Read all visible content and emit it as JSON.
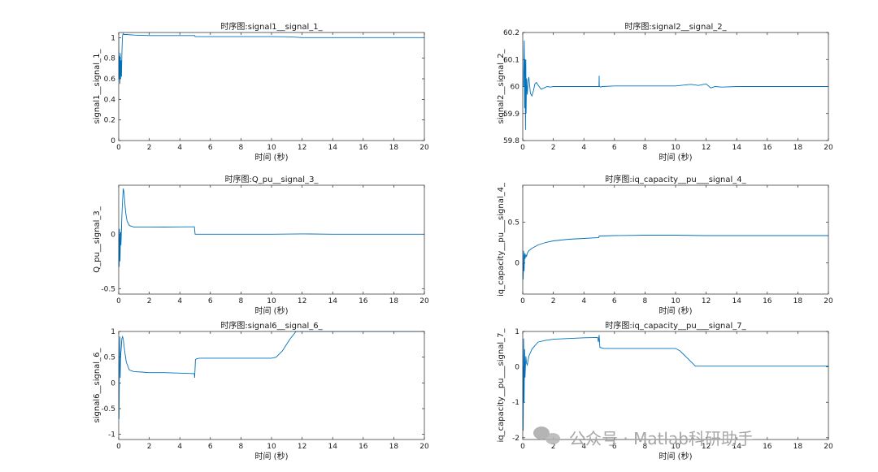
{
  "colors": {
    "series": "#0072BD",
    "axis": "#262626",
    "watermark": "#a6a6a6"
  },
  "watermark": {
    "icon": "wechat-icon",
    "text": "公众号 · Matlab科研助手"
  },
  "chart_data": [
    {
      "type": "line",
      "title": "时序图:signal1__signal_1_",
      "xlabel": "时间 (秒)",
      "ylabel": "signal1__signal_1_",
      "xlim": [
        0,
        20
      ],
      "ylim": [
        0,
        1.05
      ],
      "xticks": [
        0,
        2,
        4,
        6,
        8,
        10,
        12,
        14,
        16,
        18,
        20
      ],
      "xtick_labels": [
        "0",
        "2",
        "4",
        "6",
        "8",
        "10",
        "12",
        "14",
        "16",
        "18",
        "20"
      ],
      "yticks": [
        0,
        0.2,
        0.4,
        0.6,
        0.8,
        1
      ],
      "ytick_labels": [
        "0",
        "0.2",
        "0.4",
        "0.6",
        "0.8",
        "1"
      ],
      "series": [
        {
          "x": [
            0,
            0.02,
            0.05,
            0.08,
            0.1,
            0.12,
            0.15,
            0.18,
            0.2,
            0.22,
            0.25,
            0.3,
            0.35,
            0.5,
            1,
            2,
            3,
            4,
            4.98,
            5,
            5.02,
            6,
            8,
            10,
            11,
            11.5,
            12,
            13,
            14,
            16,
            18,
            20
          ],
          "y": [
            1.0,
            0.6,
            0.82,
            0.55,
            0.85,
            0.6,
            0.78,
            0.62,
            0.8,
            0.9,
            1.02,
            1.04,
            1.03,
            1.03,
            1.025,
            1.02,
            1.02,
            1.02,
            1.02,
            1.01,
            1.01,
            1.01,
            1.01,
            1.01,
            1.008,
            1.005,
            1.0,
            1.0,
            1.0,
            1.0,
            1.0,
            1.0
          ]
        }
      ]
    },
    {
      "type": "line",
      "title": "时序图:signal2__signal_2_",
      "xlabel": "时间 (秒)",
      "ylabel": "signal2__signal_2_",
      "xlim": [
        0,
        20
      ],
      "ylim": [
        59.8,
        60.2
      ],
      "xticks": [
        0,
        2,
        4,
        6,
        8,
        10,
        12,
        14,
        16,
        18,
        20
      ],
      "xtick_labels": [
        "0",
        "2",
        "4",
        "6",
        "8",
        "10",
        "12",
        "14",
        "16",
        "18",
        "20"
      ],
      "yticks": [
        59.8,
        59.9,
        60,
        60.1,
        60.2
      ],
      "ytick_labels": [
        "59.8",
        "59.9",
        "60",
        "60.1",
        "60.2"
      ],
      "series": [
        {
          "x": [
            0,
            0.05,
            0.1,
            0.12,
            0.15,
            0.18,
            0.2,
            0.22,
            0.25,
            0.3,
            0.35,
            0.4,
            0.5,
            0.6,
            0.7,
            0.8,
            0.9,
            1.0,
            1.2,
            1.4,
            1.6,
            1.8,
            2,
            3,
            4,
            4.99,
            5.0,
            5.01,
            5.05,
            5.1,
            5.2,
            6,
            8,
            10,
            10.5,
            11,
            11.5,
            12,
            12.3,
            12.6,
            13,
            14,
            16,
            18,
            20
          ],
          "y": [
            60,
            60.0,
            60.17,
            59.92,
            60.1,
            59.84,
            60.1,
            59.9,
            60.03,
            59.97,
            60.02,
            60.035,
            59.975,
            59.965,
            59.985,
            60.01,
            60.015,
            60.005,
            59.99,
            59.995,
            60.0,
            59.998,
            60.0,
            60.0,
            60.0,
            60.0,
            60.04,
            60.0,
            60.0,
            59.998,
            60.0,
            60.002,
            60.002,
            60.002,
            60.005,
            60.008,
            60.004,
            60.01,
            59.995,
            60.0,
            59.998,
            60.0,
            60.0,
            60.0,
            60.0
          ]
        }
      ]
    },
    {
      "type": "line",
      "title": "时序图:Q_pu__signal_3_",
      "xlabel": "时间 (秒)",
      "ylabel": "Q_pu__signal_3_",
      "xlim": [
        0,
        20
      ],
      "ylim": [
        -0.55,
        0.45
      ],
      "xticks": [
        0,
        2,
        4,
        6,
        8,
        10,
        12,
        14,
        16,
        18,
        20
      ],
      "xtick_labels": [
        "0",
        "2",
        "4",
        "6",
        "8",
        "10",
        "12",
        "14",
        "16",
        "18",
        "20"
      ],
      "yticks": [
        -0.5,
        0
      ],
      "ytick_labels": [
        "-0.5",
        "0"
      ],
      "series": [
        {
          "x": [
            0,
            0.03,
            0.06,
            0.09,
            0.12,
            0.15,
            0.2,
            0.25,
            0.3,
            0.35,
            0.45,
            0.55,
            0.7,
            1,
            2,
            3,
            4,
            4.9,
            4.95,
            5.0,
            5.02,
            6,
            8,
            10,
            12,
            14,
            16,
            18,
            20
          ],
          "y": [
            0,
            -0.3,
            0.05,
            -0.25,
            0.02,
            -0.1,
            0.15,
            0.3,
            0.42,
            0.38,
            0.2,
            0.12,
            0.08,
            0.065,
            0.065,
            0.066,
            0.067,
            0.068,
            0.068,
            0.0,
            0.0,
            0.0,
            0.0,
            0.0,
            0.003,
            0.0,
            0.0,
            0.0,
            0.0
          ]
        }
      ]
    },
    {
      "type": "line",
      "title": "时序图:iq_capacity__pu___signal_4_",
      "xlabel": "时间 (秒)",
      "ylabel": "iq_capacity__pu___signal_4_",
      "xlim": [
        0,
        20
      ],
      "ylim": [
        -0.38,
        0.95
      ],
      "xticks": [
        0,
        2,
        4,
        6,
        8,
        10,
        12,
        14,
        16,
        18,
        20
      ],
      "xtick_labels": [
        "0",
        "2",
        "4",
        "6",
        "8",
        "10",
        "12",
        "14",
        "16",
        "18",
        "20"
      ],
      "yticks": [
        0,
        0.5
      ],
      "ytick_labels": [
        "0",
        "0.5"
      ],
      "series": [
        {
          "x": [
            0,
            0.03,
            0.06,
            0.09,
            0.12,
            0.15,
            0.2,
            0.25,
            0.3,
            0.4,
            0.6,
            0.8,
            1,
            1.5,
            2,
            3,
            4,
            4.98,
            5,
            6,
            8,
            10,
            12,
            14,
            16,
            18,
            20
          ],
          "y": [
            0,
            -0.2,
            0.15,
            -0.1,
            0.12,
            0.05,
            0.1,
            0.08,
            0.12,
            0.15,
            0.18,
            0.2,
            0.22,
            0.25,
            0.27,
            0.29,
            0.3,
            0.31,
            0.33,
            0.335,
            0.34,
            0.34,
            0.335,
            0.335,
            0.335,
            0.335,
            0.335
          ]
        }
      ]
    },
    {
      "type": "line",
      "title": "时序图:signal6__signal_6_",
      "xlabel": "时间 (秒)",
      "ylabel": "signal6__signal_6_",
      "xlim": [
        0,
        20
      ],
      "ylim": [
        -1.1,
        1
      ],
      "xticks": [
        0,
        2,
        4,
        6,
        8,
        10,
        12,
        14,
        16,
        18,
        20
      ],
      "xtick_labels": [
        "0",
        "2",
        "4",
        "6",
        "8",
        "10",
        "12",
        "14",
        "16",
        "18",
        "20"
      ],
      "yticks": [
        -1,
        -0.5,
        0,
        0.5,
        1
      ],
      "ytick_labels": [
        "-1",
        "-0.5",
        "0",
        "0.5",
        "1"
      ],
      "series": [
        {
          "x": [
            0,
            0.02,
            0.05,
            0.08,
            0.1,
            0.12,
            0.15,
            0.2,
            0.25,
            0.3,
            0.4,
            0.5,
            0.7,
            1,
            1.5,
            2,
            3,
            4,
            4.95,
            4.97,
            5.0,
            5.02,
            5.1,
            5.3,
            6,
            8,
            10,
            10.3,
            10.7,
            11.2,
            11.6,
            12,
            14,
            16,
            18,
            20
          ],
          "y": [
            0,
            -0.7,
            0.3,
            0.9,
            0.1,
            0.5,
            0.6,
            0.85,
            0.9,
            0.85,
            0.6,
            0.4,
            0.25,
            0.22,
            0.21,
            0.2,
            0.2,
            0.19,
            0.18,
            0.1,
            0.3,
            0.45,
            0.47,
            0.48,
            0.48,
            0.48,
            0.48,
            0.5,
            0.62,
            0.85,
            1.0,
            1.0,
            1.0,
            1.0,
            1.0,
            1.0
          ]
        }
      ]
    },
    {
      "type": "line",
      "title": "时序图:iq_capacity__pu___signal_7_",
      "xlabel": "时间 (秒)",
      "ylabel": "iq_capacity__pu___signal_7_",
      "xlim": [
        0,
        20
      ],
      "ylim": [
        -2.05,
        1
      ],
      "xticks": [
        0,
        2,
        4,
        6,
        8,
        10,
        12,
        14,
        16,
        18,
        20
      ],
      "xtick_labels": [
        "0",
        "2",
        "4",
        "6",
        "8",
        "10",
        "12",
        "14",
        "16",
        "18",
        "20"
      ],
      "yticks": [
        -2,
        -1,
        0,
        1
      ],
      "ytick_labels": [
        "-2",
        "-1",
        "0",
        "1"
      ],
      "series": [
        {
          "x": [
            0,
            0.03,
            0.06,
            0.09,
            0.12,
            0.15,
            0.2,
            0.25,
            0.3,
            0.4,
            0.6,
            0.8,
            1,
            1.5,
            2,
            3,
            4,
            4.9,
            4.95,
            5.0,
            5.05,
            5.3,
            6,
            8,
            10,
            10.3,
            11,
            11.3,
            12,
            14,
            16,
            18,
            20
          ],
          "y": [
            0,
            -1.8,
            0.8,
            -1.0,
            0.5,
            -0.3,
            0.3,
            0.1,
            0.05,
            0.3,
            0.5,
            0.6,
            0.7,
            0.75,
            0.78,
            0.8,
            0.82,
            0.83,
            0.7,
            0.9,
            0.55,
            0.52,
            0.52,
            0.52,
            0.52,
            0.45,
            0.15,
            0.02,
            0.02,
            0.02,
            0.02,
            0.02,
            0.02
          ]
        }
      ]
    }
  ]
}
